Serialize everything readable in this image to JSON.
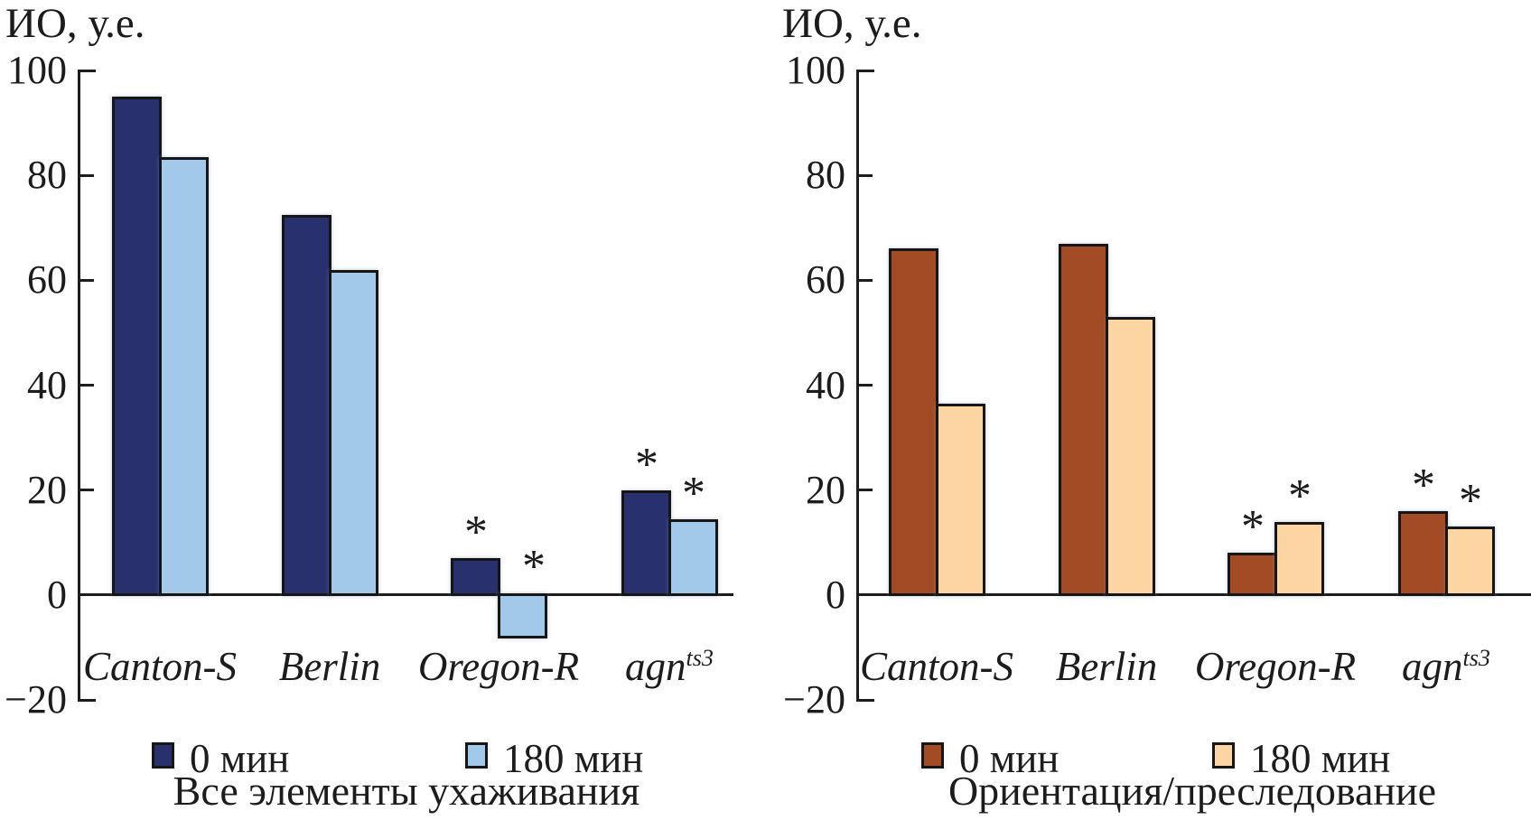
{
  "chart_data": [
    {
      "type": "bar",
      "title": "ИО, у.е.",
      "caption": "Все элементы ухаживания",
      "categories": [
        {
          "label": "Canton-S",
          "sup": ""
        },
        {
          "label": "Berlin",
          "sup": ""
        },
        {
          "label": "Oregon-R",
          "sup": ""
        },
        {
          "label": "agn",
          "sup": "ts3"
        }
      ],
      "series": [
        {
          "name": "0 мин",
          "color": "#28306E",
          "values": [
            95,
            72.5,
            7,
            20
          ],
          "significant": [
            false,
            false,
            true,
            true
          ]
        },
        {
          "name": "180 мин",
          "color": "#A2C9E9",
          "values": [
            83.5,
            62,
            -8,
            14.5
          ],
          "significant": [
            false,
            false,
            true,
            true
          ]
        }
      ],
      "marker": "*",
      "y_axis": {
        "label": "ИО, у.е.",
        "range": [
          -20,
          100
        ],
        "grid": false,
        "ticks": [
          {
            "value": 100,
            "label": "100"
          },
          {
            "value": 80,
            "label": "80"
          },
          {
            "value": 60,
            "label": "60"
          },
          {
            "value": 40,
            "label": "40"
          },
          {
            "value": 20,
            "label": "20"
          },
          {
            "value": 0,
            "label": "0"
          },
          {
            "value": -20,
            "label": "−20"
          }
        ]
      },
      "legend_position": "bottom"
    },
    {
      "type": "bar",
      "title": "ИО, у.е.",
      "caption": "Ориентация/преследование",
      "categories": [
        {
          "label": "Canton-S",
          "sup": ""
        },
        {
          "label": "Berlin",
          "sup": ""
        },
        {
          "label": "Oregon-R",
          "sup": ""
        },
        {
          "label": "agn",
          "sup": "ts3"
        }
      ],
      "series": [
        {
          "name": "0 мин",
          "color": "#A34B24",
          "values": [
            66,
            67,
            8,
            16
          ],
          "significant": [
            false,
            false,
            true,
            true
          ]
        },
        {
          "name": "180 мин",
          "color": "#FCD5A3",
          "values": [
            36.5,
            53,
            14,
            13
          ],
          "significant": [
            false,
            false,
            true,
            true
          ]
        }
      ],
      "marker": "*",
      "y_axis": {
        "label": "ИО, у.е.",
        "range": [
          -20,
          100
        ],
        "grid": false,
        "ticks": [
          {
            "value": 100,
            "label": "100"
          },
          {
            "value": 80,
            "label": "80"
          },
          {
            "value": 60,
            "label": "60"
          },
          {
            "value": 40,
            "label": "40"
          },
          {
            "value": 20,
            "label": "20"
          },
          {
            "value": 0,
            "label": "0"
          },
          {
            "value": -20,
            "label": "−20"
          }
        ]
      },
      "legend_position": "bottom"
    }
  ]
}
